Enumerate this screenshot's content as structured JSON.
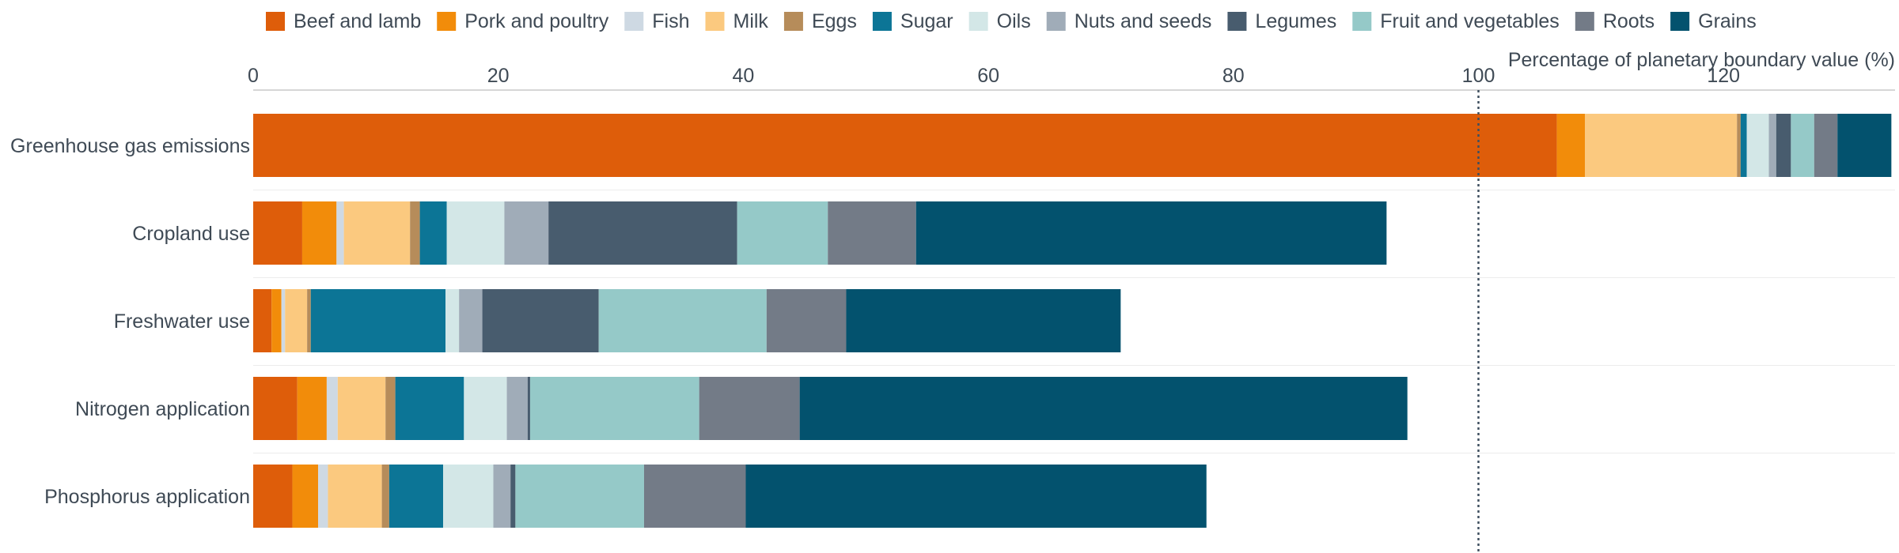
{
  "chart_data": {
    "type": "bar",
    "orientation": "horizontal",
    "stacked": true,
    "xlabel": "Percentage of planetary boundary value (%)",
    "xlim": [
      0,
      134
    ],
    "x_ticks": [
      "0",
      "20",
      "40",
      "60",
      "80",
      "100",
      "120"
    ],
    "x_tick_values": [
      0,
      20,
      40,
      60,
      80,
      100,
      120
    ],
    "reference_line": {
      "value": 100,
      "style": "dotted"
    },
    "legend_position": "top",
    "grid": "horizontal lines between categories",
    "categories": [
      "Greenhouse gas emissions",
      "Cropland use",
      "Freshwater use",
      "Nitrogen application",
      "Phosphorus application"
    ],
    "series": [
      {
        "name": "Beef and lamb",
        "color": "#de5d0a",
        "values": [
          106.4,
          4.0,
          1.5,
          3.6,
          3.2
        ]
      },
      {
        "name": "Pork and poultry",
        "color": "#f28c0a",
        "values": [
          2.3,
          2.8,
          0.8,
          2.4,
          2.1
        ]
      },
      {
        "name": "Fish",
        "color": "#ced9e3",
        "values": [
          0.0,
          0.6,
          0.3,
          0.9,
          0.8
        ]
      },
      {
        "name": "Milk",
        "color": "#fbc97f",
        "values": [
          12.4,
          5.4,
          1.8,
          3.9,
          4.4
        ]
      },
      {
        "name": "Eggs",
        "color": "#b68c5a",
        "values": [
          0.3,
          0.8,
          0.3,
          0.8,
          0.6
        ]
      },
      {
        "name": "Sugar",
        "color": "#0c7596",
        "values": [
          0.5,
          2.2,
          11.0,
          5.6,
          4.4
        ]
      },
      {
        "name": "Oils",
        "color": "#d3e7e7",
        "values": [
          1.8,
          4.7,
          1.1,
          3.5,
          4.1
        ]
      },
      {
        "name": "Nuts and seeds",
        "color": "#a0acb8",
        "values": [
          0.6,
          3.6,
          1.9,
          1.7,
          1.4
        ]
      },
      {
        "name": "Legumes",
        "color": "#485c6e",
        "values": [
          1.2,
          15.4,
          9.5,
          0.2,
          0.4
        ]
      },
      {
        "name": "Fruit and vegetables",
        "color": "#95c9c8",
        "values": [
          1.9,
          7.4,
          13.7,
          13.8,
          10.5
        ]
      },
      {
        "name": "Roots",
        "color": "#737b87",
        "values": [
          1.9,
          7.2,
          6.5,
          8.2,
          8.3
        ]
      },
      {
        "name": "Grains",
        "color": "#03526e",
        "values": [
          4.4,
          38.4,
          22.4,
          49.6,
          37.6
        ]
      }
    ]
  }
}
